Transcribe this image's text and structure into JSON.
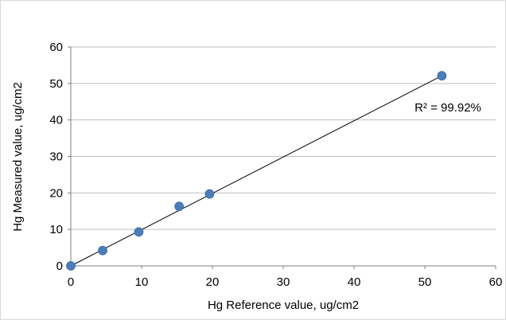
{
  "chart_data": {
    "type": "scatter",
    "xlabel": "Hg Reference value, ug/cm2",
    "ylabel": "Hg Measured value, ug/cm2",
    "xlim": [
      0,
      60
    ],
    "ylim": [
      0,
      60
    ],
    "x_ticks": [
      0,
      10,
      20,
      30,
      40,
      50,
      60
    ],
    "y_ticks": [
      0,
      10,
      20,
      30,
      40,
      50,
      60
    ],
    "grid": "horizontal",
    "points": [
      {
        "x": 0,
        "y": 0
      },
      {
        "x": 4.5,
        "y": 4.2
      },
      {
        "x": 9.6,
        "y": 9.3
      },
      {
        "x": 15.3,
        "y": 16.3
      },
      {
        "x": 19.6,
        "y": 19.7
      },
      {
        "x": 52.4,
        "y": 52.1
      }
    ],
    "trendline": {
      "from": [
        0,
        0
      ],
      "to": [
        52.4,
        52.1
      ]
    },
    "annotation": "R² = 99.92%",
    "colors": {
      "marker": "#4a7ebb",
      "grid": "#bfbfbf",
      "axis": "#7f7f7f",
      "trendline": "#000000"
    }
  }
}
